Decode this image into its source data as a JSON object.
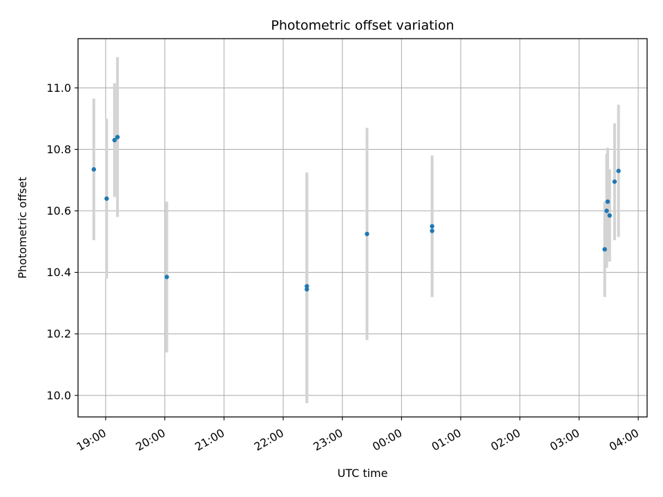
{
  "chart_data": {
    "type": "scatter",
    "title": "Photometric offset variation",
    "xlabel": "UTC time",
    "ylabel": "Photometric offset",
    "x_axis_kind": "time",
    "x_start_date": "",
    "xlim": [
      "18:32",
      "04:09"
    ],
    "ylim": [
      9.93,
      11.16
    ],
    "grid": true,
    "marker_color": "#1f77b4",
    "errorbar_color": "#d3d3d3",
    "x_ticks": [
      "19:00",
      "20:00",
      "21:00",
      "22:00",
      "23:00",
      "00:00",
      "01:00",
      "02:00",
      "03:00",
      "04:00"
    ],
    "y_ticks": [
      "10.0",
      "10.2",
      "10.4",
      "10.6",
      "10.8",
      "11.0"
    ],
    "points": [
      {
        "x": "18:48",
        "y": 10.735,
        "err": 0.23
      },
      {
        "x": "19:01",
        "y": 10.64,
        "err": 0.26
      },
      {
        "x": "19:09",
        "y": 10.83,
        "err": 0.185
      },
      {
        "x": "19:12",
        "y": 10.84,
        "err": 0.26
      },
      {
        "x": "20:02",
        "y": 10.385,
        "err": 0.245
      },
      {
        "x": "22:24",
        "y": 10.355,
        "err": 0.37
      },
      {
        "x": "22:24",
        "y": 10.345,
        "err": 0.37
      },
      {
        "x": "23:25",
        "y": 10.525,
        "err": 0.345
      },
      {
        "x": "00:31",
        "y": 10.55,
        "err": 0.23
      },
      {
        "x": "00:31",
        "y": 10.535,
        "err": 0.215
      },
      {
        "x": "03:26",
        "y": 10.475,
        "err": 0.155
      },
      {
        "x": "03:28",
        "y": 10.6,
        "err": 0.185
      },
      {
        "x": "03:29",
        "y": 10.63,
        "err": 0.175
      },
      {
        "x": "03:31",
        "y": 10.585,
        "err": 0.15
      },
      {
        "x": "03:36",
        "y": 10.695,
        "err": 0.19
      },
      {
        "x": "03:40",
        "y": 10.73,
        "err": 0.215
      }
    ]
  }
}
